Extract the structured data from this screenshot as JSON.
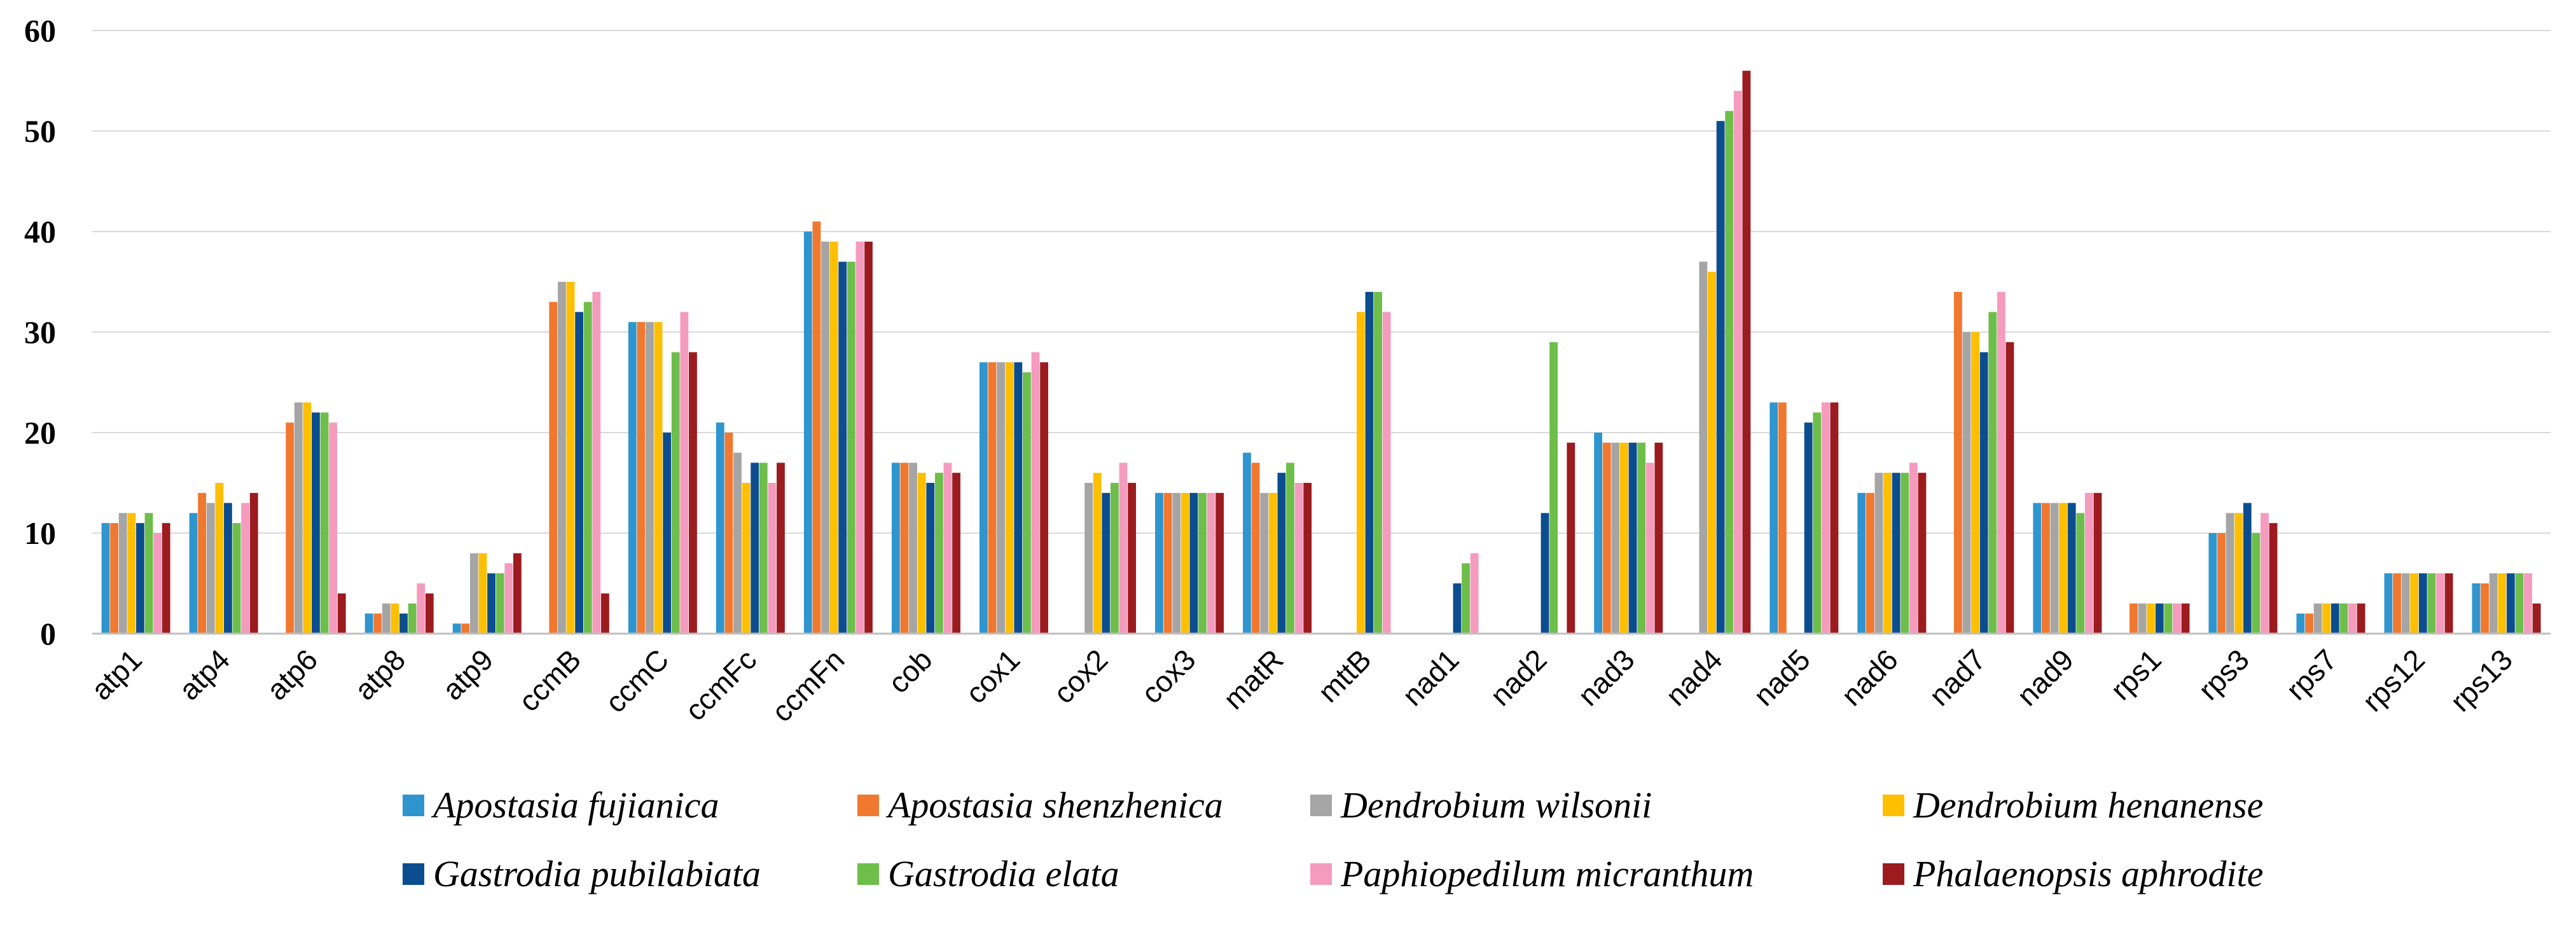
{
  "chart_data": {
    "type": "bar",
    "title": "",
    "xlabel": "",
    "ylabel": "",
    "ylim": [
      0,
      60
    ],
    "yticks": [
      0,
      10,
      20,
      30,
      40,
      50,
      60
    ],
    "grid": true,
    "legend_position": "bottom",
    "categories": [
      "atp1",
      "atp4",
      "atp6",
      "atp8",
      "atp9",
      "ccmB",
      "ccmC",
      "ccmFc",
      "ccmFn",
      "cob",
      "cox1",
      "cox2",
      "cox3",
      "matR",
      "mttB",
      "nad1",
      "nad2",
      "nad3",
      "nad4",
      "nad5",
      "nad6",
      "nad7",
      "nad9",
      "rps1",
      "rps3",
      "rps7",
      "rps12",
      "rps13"
    ],
    "series": [
      {
        "name": "Apostasia fujianica",
        "color": "#2E95CF",
        "values": [
          11,
          12,
          0,
          2,
          1,
          0,
          31,
          21,
          40,
          17,
          27,
          0,
          14,
          18,
          0,
          0,
          0,
          20,
          0,
          23,
          14,
          0,
          13,
          0,
          10,
          2,
          6,
          5
        ]
      },
      {
        "name": "Apostasia shenzhenica",
        "color": "#F0782F",
        "values": [
          11,
          14,
          21,
          2,
          1,
          33,
          31,
          20,
          41,
          17,
          27,
          0,
          14,
          17,
          0,
          0,
          0,
          19,
          0,
          23,
          14,
          34,
          13,
          3,
          10,
          2,
          6,
          5
        ]
      },
      {
        "name": "Dendrobium wilsonii",
        "color": "#A5A5A5",
        "values": [
          12,
          13,
          23,
          3,
          8,
          35,
          31,
          18,
          39,
          17,
          27,
          15,
          14,
          14,
          0,
          0,
          0,
          19,
          37,
          0,
          16,
          30,
          13,
          3,
          12,
          3,
          6,
          6
        ]
      },
      {
        "name": "Dendrobium henanense",
        "color": "#FDBF00",
        "values": [
          12,
          15,
          23,
          3,
          8,
          35,
          31,
          15,
          39,
          16,
          27,
          16,
          14,
          14,
          32,
          0,
          0,
          19,
          36,
          0,
          16,
          30,
          13,
          3,
          12,
          3,
          6,
          6
        ]
      },
      {
        "name": "Gastrodia pubilabiata",
        "color": "#0C4D8F",
        "values": [
          11,
          13,
          22,
          2,
          6,
          32,
          20,
          17,
          37,
          15,
          27,
          14,
          14,
          16,
          34,
          5,
          12,
          19,
          51,
          21,
          16,
          28,
          13,
          3,
          13,
          3,
          6,
          6
        ]
      },
      {
        "name": "Gastrodia elata",
        "color": "#6DBE4A",
        "values": [
          12,
          11,
          22,
          3,
          6,
          33,
          28,
          17,
          37,
          16,
          26,
          15,
          14,
          17,
          34,
          7,
          29,
          19,
          52,
          22,
          16,
          32,
          12,
          3,
          10,
          3,
          6,
          6
        ]
      },
      {
        "name": "Paphiopedilum micranthum",
        "color": "#F49BBE",
        "values": [
          10,
          13,
          21,
          5,
          7,
          34,
          32,
          15,
          39,
          17,
          28,
          17,
          14,
          15,
          32,
          8,
          0,
          17,
          54,
          23,
          17,
          34,
          14,
          3,
          12,
          3,
          6,
          6
        ]
      },
      {
        "name": "Phalaenopsis aphrodite",
        "color": "#9B1B1F",
        "values": [
          11,
          14,
          4,
          4,
          8,
          4,
          28,
          17,
          39,
          16,
          27,
          15,
          14,
          15,
          0,
          0,
          19,
          19,
          56,
          23,
          16,
          29,
          14,
          3,
          11,
          3,
          6,
          3
        ]
      }
    ]
  }
}
